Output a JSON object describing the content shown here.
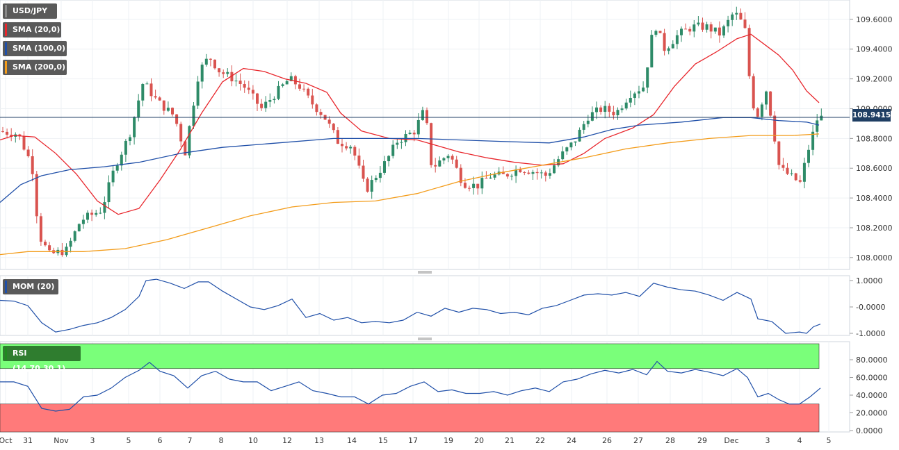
{
  "chart_data": [
    {
      "type": "candlestick",
      "panel": "price",
      "symbol": "USD/JPY",
      "last_price": "108.9415",
      "y_ticks": [
        "109.6000",
        "109.4000",
        "109.2000",
        "109.0000",
        "108.8000",
        "108.6000",
        "108.4000",
        "108.2000",
        "108.0000"
      ],
      "ylim": [
        107.92,
        109.73
      ],
      "x_ticks": [
        "Oct",
        "31",
        "Nov",
        "3",
        "5",
        "6",
        "7",
        "8",
        "10",
        "12",
        "13",
        "14",
        "15",
        "17",
        "19",
        "20",
        "21",
        "22",
        "24",
        "26",
        "27",
        "28",
        "29",
        "Dec",
        "3",
        "4",
        "5"
      ],
      "legend": [
        {
          "label": "USD/JPY",
          "color": "#555555"
        },
        {
          "label": "SMA (20,0)",
          "color": "#e8262c"
        },
        {
          "label": "SMA (100,0)",
          "color": "#1f4fa8"
        },
        {
          "label": "SMA (200,0)",
          "color": "#f39c1a"
        }
      ],
      "colors": {
        "up": "#2e8b68",
        "down": "#d9534f",
        "sma20": "#e8262c",
        "sma100": "#1f4fa8",
        "sma200": "#f39c1a",
        "last_line": "#1f3e63"
      },
      "series": [
        {
          "name": "SMA (20,0)",
          "points": [
            [
              0,
              108.79
            ],
            [
              20,
              108.82
            ],
            [
              50,
              108.81
            ],
            [
              80,
              108.7
            ],
            [
              110,
              108.56
            ],
            [
              140,
              108.38
            ],
            [
              170,
              108.29
            ],
            [
              200,
              108.33
            ],
            [
              230,
              108.52
            ],
            [
              260,
              108.73
            ],
            [
              290,
              108.97
            ],
            [
              320,
              109.18
            ],
            [
              350,
              109.27
            ],
            [
              380,
              109.25
            ],
            [
              410,
              109.2
            ],
            [
              440,
              109.17
            ],
            [
              470,
              109.11
            ],
            [
              490,
              108.97
            ],
            [
              520,
              108.85
            ],
            [
              560,
              108.8
            ],
            [
              600,
              108.79
            ],
            [
              630,
              108.75
            ],
            [
              660,
              108.71
            ],
            [
              700,
              108.67
            ],
            [
              740,
              108.64
            ],
            [
              780,
              108.62
            ],
            [
              810,
              108.63
            ],
            [
              840,
              108.7
            ],
            [
              870,
              108.8
            ],
            [
              910,
              108.87
            ],
            [
              940,
              108.96
            ],
            [
              970,
              109.15
            ],
            [
              1000,
              109.3
            ],
            [
              1030,
              109.38
            ],
            [
              1060,
              109.47
            ],
            [
              1080,
              109.5
            ],
            [
              1100,
              109.43
            ],
            [
              1120,
              109.36
            ],
            [
              1140,
              109.26
            ],
            [
              1160,
              109.12
            ],
            [
              1178,
              109.04
            ]
          ]
        },
        {
          "name": "SMA (100,0)",
          "points": [
            [
              0,
              108.37
            ],
            [
              30,
              108.49
            ],
            [
              60,
              108.55
            ],
            [
              100,
              108.59
            ],
            [
              150,
              108.61
            ],
            [
              200,
              108.64
            ],
            [
              260,
              108.7
            ],
            [
              320,
              108.74
            ],
            [
              400,
              108.77
            ],
            [
              480,
              108.8
            ],
            [
              540,
              108.8
            ],
            [
              600,
              108.8
            ],
            [
              660,
              108.79
            ],
            [
              720,
              108.78
            ],
            [
              790,
              108.77
            ],
            [
              840,
              108.81
            ],
            [
              880,
              108.86
            ],
            [
              920,
              108.89
            ],
            [
              980,
              108.91
            ],
            [
              1040,
              108.94
            ],
            [
              1080,
              108.94
            ],
            [
              1120,
              108.92
            ],
            [
              1160,
              108.91
            ],
            [
              1178,
              108.89
            ]
          ]
        },
        {
          "name": "SMA (200,0)",
          "points": [
            [
              0,
              108.02
            ],
            [
              40,
              108.04
            ],
            [
              80,
              108.04
            ],
            [
              120,
              108.04
            ],
            [
              180,
              108.06
            ],
            [
              240,
              108.12
            ],
            [
              300,
              108.2
            ],
            [
              360,
              108.28
            ],
            [
              420,
              108.34
            ],
            [
              480,
              108.37
            ],
            [
              540,
              108.38
            ],
            [
              600,
              108.43
            ],
            [
              660,
              108.51
            ],
            [
              720,
              108.57
            ],
            [
              780,
              108.62
            ],
            [
              840,
              108.67
            ],
            [
              900,
              108.73
            ],
            [
              960,
              108.77
            ],
            [
              1020,
              108.8
            ],
            [
              1080,
              108.82
            ],
            [
              1140,
              108.82
            ],
            [
              1178,
              108.83
            ]
          ]
        }
      ]
    },
    {
      "type": "line",
      "panel": "momentum",
      "name": "MOM (20)",
      "color": "#1f4fa8",
      "y_ticks": [
        "1.0000",
        "-0.0000",
        "-1.0000"
      ],
      "ylim": [
        -1.1,
        1.1
      ],
      "points": [
        [
          0,
          0.25
        ],
        [
          20,
          0.22
        ],
        [
          40,
          0.05
        ],
        [
          60,
          -0.6
        ],
        [
          80,
          -0.95
        ],
        [
          100,
          -0.85
        ],
        [
          120,
          -0.7
        ],
        [
          140,
          -0.6
        ],
        [
          160,
          -0.4
        ],
        [
          180,
          -0.1
        ],
        [
          200,
          0.4
        ],
        [
          210,
          1.0
        ],
        [
          225,
          1.05
        ],
        [
          245,
          0.9
        ],
        [
          265,
          0.7
        ],
        [
          285,
          0.95
        ],
        [
          300,
          0.95
        ],
        [
          320,
          0.6
        ],
        [
          340,
          0.3
        ],
        [
          360,
          0.0
        ],
        [
          380,
          -0.1
        ],
        [
          400,
          0.05
        ],
        [
          420,
          0.3
        ],
        [
          440,
          -0.4
        ],
        [
          460,
          -0.25
        ],
        [
          480,
          -0.5
        ],
        [
          500,
          -0.4
        ],
        [
          520,
          -0.6
        ],
        [
          540,
          -0.55
        ],
        [
          560,
          -0.6
        ],
        [
          580,
          -0.5
        ],
        [
          600,
          -0.2
        ],
        [
          620,
          -0.35
        ],
        [
          640,
          -0.05
        ],
        [
          660,
          -0.2
        ],
        [
          680,
          -0.05
        ],
        [
          700,
          -0.1
        ],
        [
          720,
          -0.25
        ],
        [
          740,
          -0.2
        ],
        [
          760,
          -0.3
        ],
        [
          780,
          -0.05
        ],
        [
          800,
          0.05
        ],
        [
          820,
          0.25
        ],
        [
          840,
          0.45
        ],
        [
          860,
          0.5
        ],
        [
          880,
          0.45
        ],
        [
          900,
          0.55
        ],
        [
          920,
          0.4
        ],
        [
          940,
          0.9
        ],
        [
          960,
          0.75
        ],
        [
          980,
          0.65
        ],
        [
          1000,
          0.6
        ],
        [
          1020,
          0.45
        ],
        [
          1040,
          0.25
        ],
        [
          1060,
          0.55
        ],
        [
          1080,
          0.3
        ],
        [
          1090,
          -0.45
        ],
        [
          1110,
          -0.55
        ],
        [
          1130,
          -1.0
        ],
        [
          1150,
          -0.95
        ],
        [
          1160,
          -1.0
        ],
        [
          1170,
          -0.75
        ],
        [
          1180,
          -0.65
        ]
      ]
    },
    {
      "type": "line",
      "panel": "rsi",
      "name": "RSI (14,70,30,1)",
      "color": "#1f4fa8",
      "y_ticks": [
        "80.0000",
        "60.0000",
        "40.0000",
        "20.0000",
        "0.0000"
      ],
      "ylim": [
        0,
        100
      ],
      "overbought": 70,
      "oversold": 30,
      "band_colors": {
        "overbought": "#7aff7a",
        "oversold": "#ff7a7a"
      },
      "points": [
        [
          0,
          55
        ],
        [
          20,
          55
        ],
        [
          40,
          50
        ],
        [
          60,
          25
        ],
        [
          80,
          22
        ],
        [
          100,
          24
        ],
        [
          120,
          38
        ],
        [
          140,
          40
        ],
        [
          160,
          48
        ],
        [
          180,
          60
        ],
        [
          200,
          68
        ],
        [
          215,
          77
        ],
        [
          230,
          67
        ],
        [
          250,
          62
        ],
        [
          270,
          48
        ],
        [
          290,
          62
        ],
        [
          310,
          67
        ],
        [
          330,
          58
        ],
        [
          350,
          55
        ],
        [
          370,
          55
        ],
        [
          390,
          45
        ],
        [
          410,
          50
        ],
        [
          430,
          55
        ],
        [
          450,
          45
        ],
        [
          470,
          42
        ],
        [
          490,
          38
        ],
        [
          510,
          38
        ],
        [
          530,
          30
        ],
        [
          550,
          40
        ],
        [
          570,
          42
        ],
        [
          590,
          50
        ],
        [
          610,
          55
        ],
        [
          630,
          44
        ],
        [
          650,
          46
        ],
        [
          670,
          42
        ],
        [
          690,
          42
        ],
        [
          710,
          44
        ],
        [
          730,
          40
        ],
        [
          750,
          45
        ],
        [
          770,
          48
        ],
        [
          790,
          44
        ],
        [
          810,
          55
        ],
        [
          830,
          58
        ],
        [
          850,
          64
        ],
        [
          870,
          68
        ],
        [
          890,
          65
        ],
        [
          910,
          69
        ],
        [
          930,
          63
        ],
        [
          945,
          78
        ],
        [
          960,
          67
        ],
        [
          980,
          65
        ],
        [
          1000,
          69
        ],
        [
          1020,
          66
        ],
        [
          1040,
          62
        ],
        [
          1060,
          70
        ],
        [
          1075,
          60
        ],
        [
          1090,
          38
        ],
        [
          1105,
          42
        ],
        [
          1120,
          35
        ],
        [
          1135,
          30
        ],
        [
          1150,
          30
        ],
        [
          1165,
          38
        ],
        [
          1180,
          48
        ]
      ]
    }
  ]
}
